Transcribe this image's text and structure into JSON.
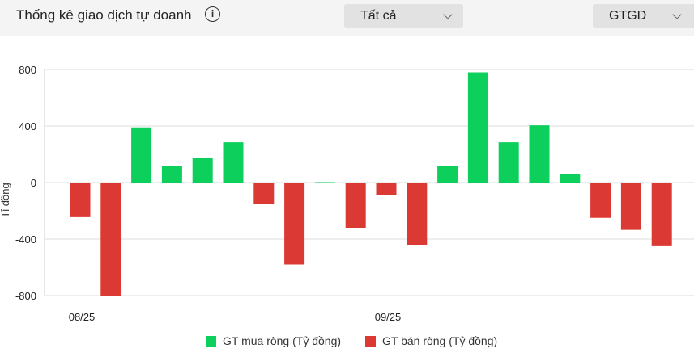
{
  "header": {
    "title": "Thống kê giao dịch tự doanh",
    "info_icon": "info-circle-icon",
    "filter_select": {
      "value": "Tất cả",
      "icon": "chevron-down-icon"
    },
    "metric_select": {
      "value": "GTGD",
      "icon": "chevron-down-icon"
    }
  },
  "chart_data": {
    "type": "bar",
    "title": "",
    "xlabel": "",
    "ylabel": "Tỉ đồng",
    "ylim": [
      -800,
      800
    ],
    "yticks": [
      -800,
      -400,
      0,
      400,
      800
    ],
    "grid": true,
    "x_tick_labels": [
      {
        "index": 0,
        "label": "08/25"
      },
      {
        "index": 10,
        "label": "09/25"
      }
    ],
    "values": [
      -245,
      -800,
      390,
      120,
      175,
      285,
      -150,
      -580,
      3,
      -320,
      -90,
      -440,
      115,
      780,
      285,
      405,
      60,
      -250,
      -335,
      -445
    ],
    "series": [
      {
        "name": "GT mua ròng (Tỷ đồng)",
        "color": "#0ccf5c",
        "rule": "positive"
      },
      {
        "name": "GT bán ròng (Tỷ đồng)",
        "color": "#db3a34",
        "rule": "negative"
      }
    ],
    "legend_position": "bottom-center"
  }
}
